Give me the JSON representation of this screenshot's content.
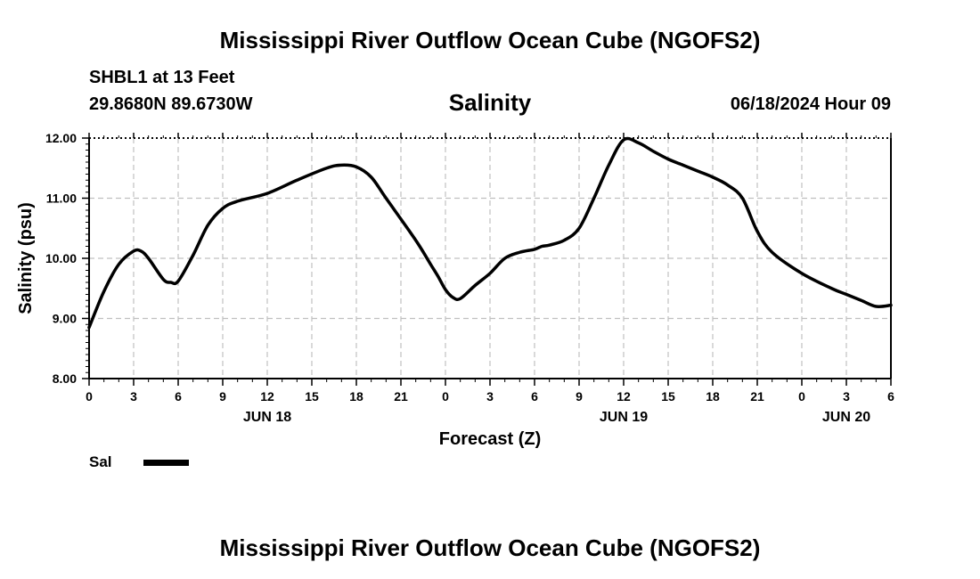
{
  "header": {
    "main_title": "Mississippi River Outflow Ocean Cube (NGOFS2)",
    "station": "SHBL1 at 13 Feet",
    "coords": "29.8680N  89.6730W",
    "variable_title": "Salinity",
    "timestamp": "06/18/2024 Hour 09"
  },
  "footer": {
    "title": "Mississippi River Outflow Ocean Cube (NGOFS2)"
  },
  "colors": {
    "line": "#000000",
    "grid": "#c0c0c0",
    "background": "#ffffff"
  },
  "chart_data": {
    "type": "line",
    "title": "Salinity",
    "xlabel": "Forecast (Z)",
    "ylabel": "Salinity (psu)",
    "ylim": [
      8.0,
      12.0
    ],
    "xlim": [
      0,
      54
    ],
    "y_ticks": [
      "8.00",
      "9.00",
      "10.00",
      "11.00",
      "12.00"
    ],
    "x_tick_labels": [
      "0",
      "3",
      "6",
      "9",
      "12",
      "15",
      "18",
      "21",
      "0",
      "3",
      "6",
      "9",
      "12",
      "15",
      "18",
      "21",
      "0",
      "3",
      "6"
    ],
    "day_labels": [
      {
        "label": "JUN 18",
        "x": 12
      },
      {
        "label": "JUN 19",
        "x": 36
      },
      {
        "label": "JUN 20",
        "x": 51
      }
    ],
    "grid": true,
    "legend_position": "bottom-left",
    "series": [
      {
        "name": "Sal",
        "x": [
          0,
          1,
          2,
          3,
          3.5,
          4,
          5,
          5.5,
          6,
          7,
          8,
          9,
          10,
          12,
          14,
          16,
          17,
          18,
          19,
          20,
          22,
          23,
          23.5,
          24,
          24.5,
          25,
          26,
          27,
          28,
          29,
          30,
          30.5,
          31,
          32,
          33,
          34,
          35,
          36,
          37,
          38,
          39,
          40,
          41,
          42,
          43,
          44,
          45,
          46,
          48,
          50,
          51,
          52,
          53,
          54
        ],
        "y": [
          8.85,
          9.45,
          9.9,
          10.12,
          10.12,
          10.0,
          9.65,
          9.6,
          9.62,
          10.05,
          10.55,
          10.83,
          10.95,
          11.08,
          11.3,
          11.5,
          11.55,
          11.52,
          11.35,
          11.0,
          10.3,
          9.9,
          9.7,
          9.48,
          9.35,
          9.33,
          9.55,
          9.75,
          10.0,
          10.1,
          10.15,
          10.2,
          10.22,
          10.3,
          10.5,
          11.0,
          11.55,
          11.97,
          11.92,
          11.78,
          11.65,
          11.55,
          11.45,
          11.35,
          11.22,
          11.0,
          10.45,
          10.1,
          9.75,
          9.5,
          9.4,
          9.3,
          9.2,
          9.22
        ]
      }
    ]
  },
  "legend": {
    "label": "Sal"
  }
}
